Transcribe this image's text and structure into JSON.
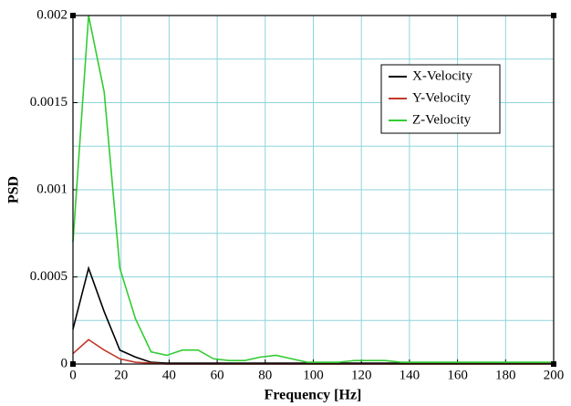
{
  "chart_data": {
    "type": "line",
    "xlabel": "Frequency [Hz]",
    "ylabel": "PSD",
    "x": [
      0,
      6.5,
      13,
      19.5,
      26,
      32.5,
      39,
      45.5,
      52,
      58.5,
      65,
      71.5,
      78,
      84.5,
      91,
      97.5,
      104,
      110.5,
      117,
      123.5,
      130,
      136.5,
      143,
      149.5,
      156,
      162.5,
      169,
      175.5,
      182,
      188.5,
      195,
      200
    ],
    "series": [
      {
        "name": "X-Velocity",
        "color": "#000000",
        "values": [
          0.0002,
          0.00055,
          0.0003,
          8e-05,
          4e-05,
          1e-05,
          5e-06,
          5e-06,
          5e-06,
          5e-06,
          5e-06,
          5e-06,
          5e-06,
          5e-06,
          5e-06,
          5e-06,
          5e-06,
          5e-06,
          5e-06,
          5e-06,
          5e-06,
          5e-06,
          5e-06,
          5e-06,
          5e-06,
          5e-06,
          5e-06,
          5e-06,
          5e-06,
          5e-06,
          5e-06,
          5e-06
        ]
      },
      {
        "name": "Y-Velocity",
        "color": "#c0392b",
        "values": [
          6e-05,
          0.00014,
          8e-05,
          3e-05,
          1e-05,
          5e-06,
          0,
          0,
          0,
          0,
          0,
          0,
          0,
          0,
          0,
          0,
          0,
          0,
          0,
          0,
          0,
          0,
          0,
          0,
          0,
          0,
          0,
          0,
          0,
          0,
          0,
          0
        ]
      },
      {
        "name": "Z-Velocity",
        "color": "#33cc33",
        "values": [
          0.0007,
          0.002,
          0.00156,
          0.00055,
          0.00026,
          7e-05,
          5e-05,
          8e-05,
          8e-05,
          3e-05,
          2e-05,
          2e-05,
          4e-05,
          5e-05,
          3e-05,
          1e-05,
          1e-05,
          1e-05,
          2e-05,
          2e-05,
          2e-05,
          1e-05,
          1e-05,
          1e-05,
          1e-05,
          1e-05,
          1e-05,
          1e-05,
          1e-05,
          1e-05,
          1e-05,
          1e-05
        ]
      }
    ],
    "xlim": [
      0,
      200
    ],
    "xticks": [
      0,
      20,
      40,
      60,
      80,
      100,
      120,
      140,
      160,
      180,
      200
    ],
    "ylim": [
      0,
      0.002
    ],
    "yticks": [
      0,
      0.0005,
      0.001,
      0.0015,
      0.002
    ],
    "ygrid_minor": [
      0.00025,
      0.00075,
      0.00125,
      0.00175
    ],
    "grid": true,
    "legend": "upper right"
  }
}
